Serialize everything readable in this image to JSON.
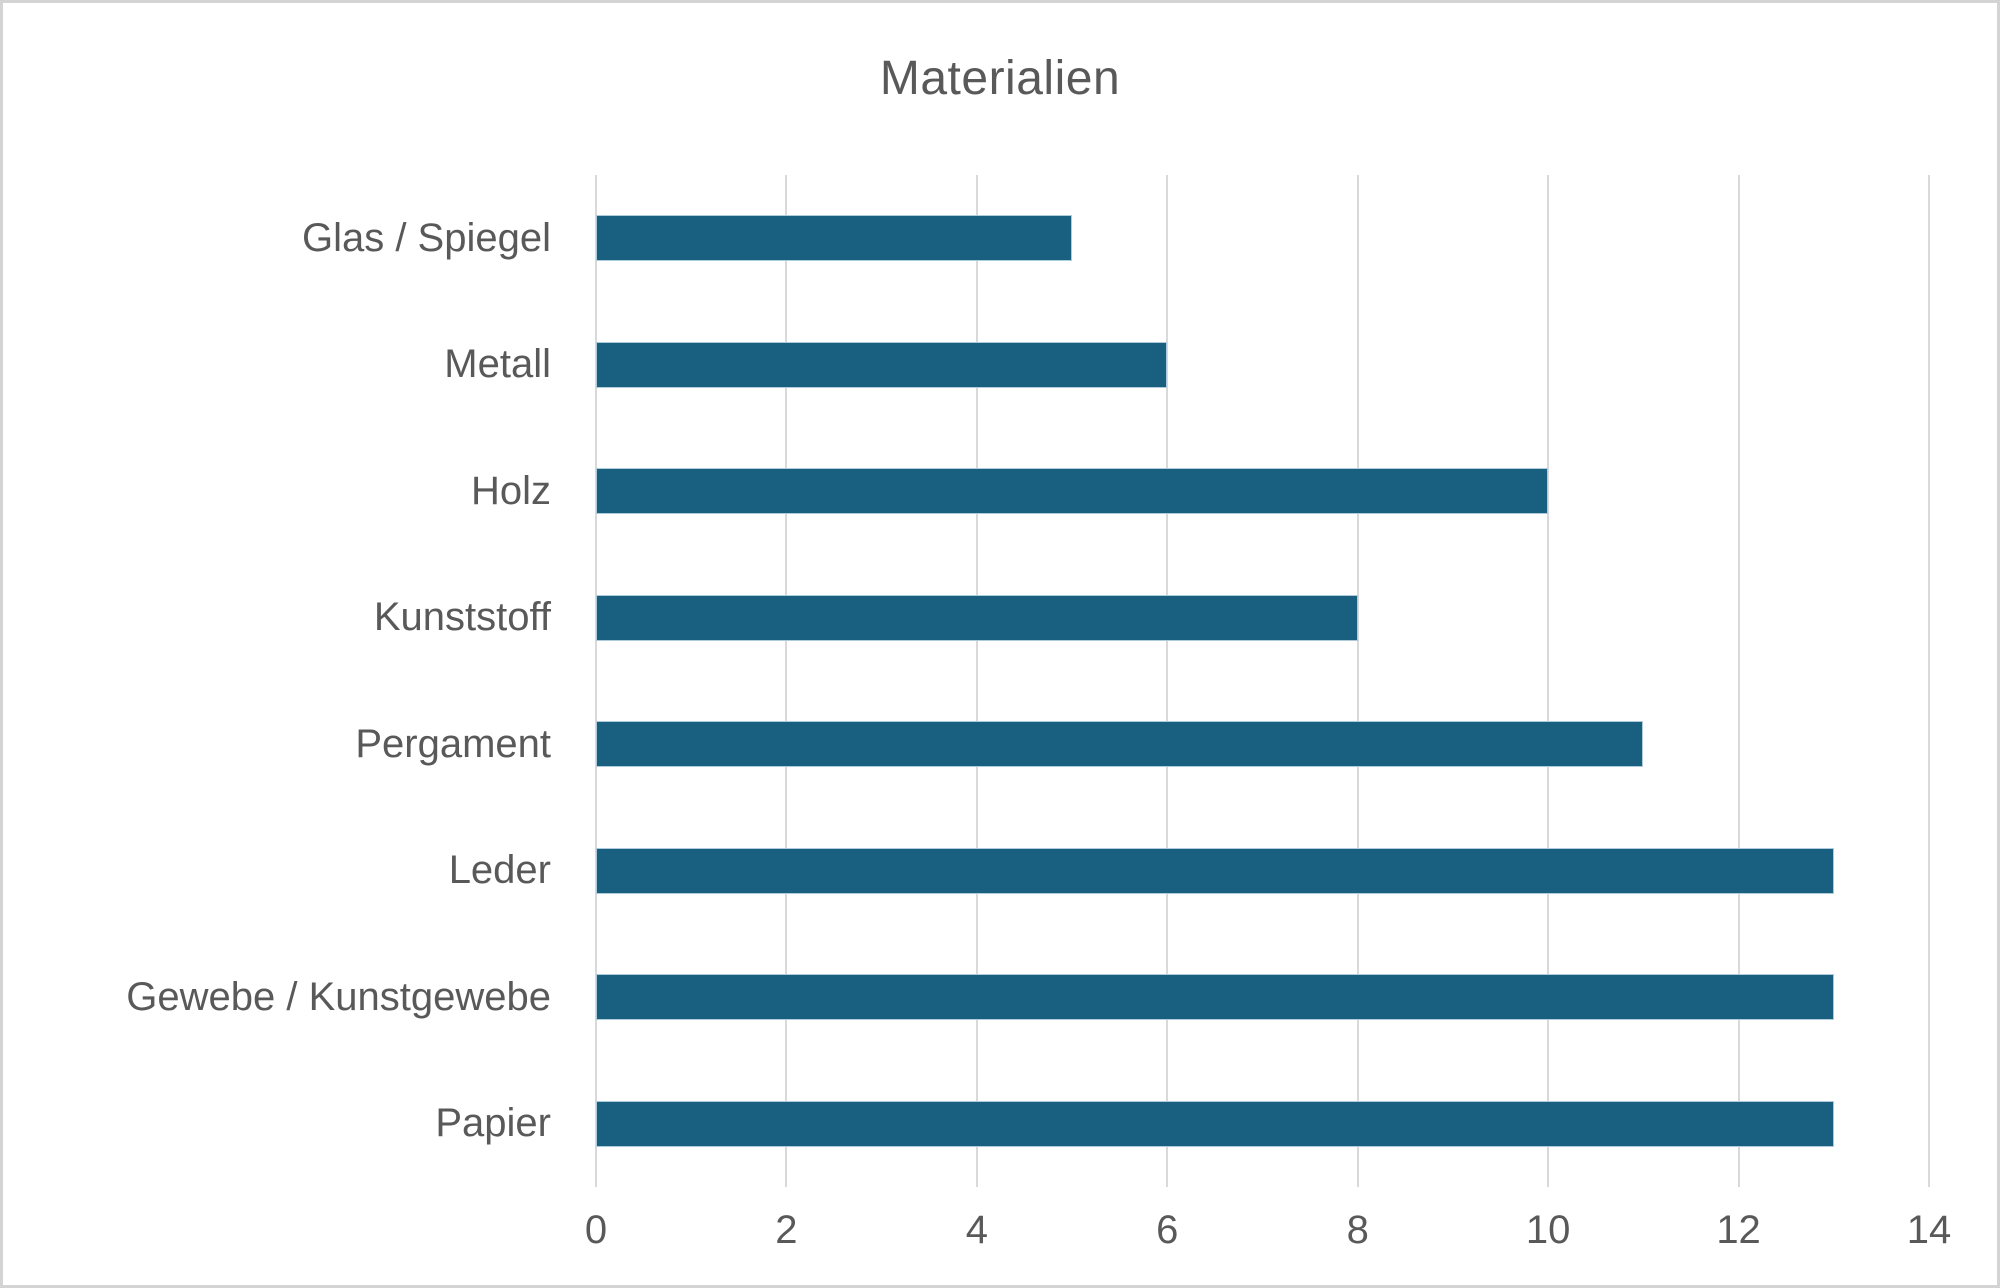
{
  "chart_data": {
    "type": "bar",
    "orientation": "horizontal",
    "title": "Materialien",
    "categories": [
      "Glas / Spiegel",
      "Metall",
      "Holz",
      "Kunststoff",
      "Pergament",
      "Leder",
      "Gewebe / Kunstgewebe",
      "Papier"
    ],
    "values": [
      5,
      6,
      10,
      8,
      11,
      13,
      13,
      13
    ],
    "xlabel": "",
    "ylabel": "",
    "xlim": [
      0,
      14
    ],
    "xticks": [
      0,
      2,
      4,
      6,
      8,
      10,
      12,
      14
    ],
    "grid": "vertical-only",
    "legend": "none"
  },
  "colors": {
    "bar_fill": "#196080",
    "bar_border": "#aecbdb",
    "grid_line": "#d9d9d9",
    "text": "#595959",
    "frame_border": "#d4d4d4",
    "background": "#ffffff"
  }
}
